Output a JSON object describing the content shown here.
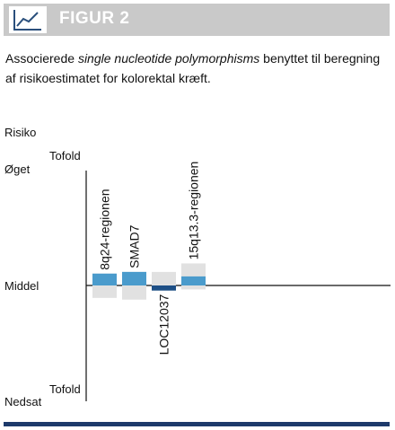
{
  "header": {
    "title": "FIGUR 2",
    "icon": "line-chart-icon"
  },
  "caption": {
    "part1": "Associerede ",
    "italic": "single nucleotide polymorphisms",
    "part2": " benyttet til beregning af risikoestimatet for kolorektal kræft."
  },
  "colors": {
    "header_bg": "#c9c9c9",
    "footer": "#1d3a6b",
    "estimate": "#4a9bcc",
    "negative": "#1d4f86",
    "range": "#e1e1e1"
  },
  "chart_data": {
    "type": "bar",
    "title": "",
    "ylabel": "Risiko",
    "ylim": [
      -2,
      2
    ],
    "y_ticks": [
      {
        "label": "Øget",
        "value": 2,
        "sublabel": "Tofold"
      },
      {
        "label": "Middel",
        "value": 0
      },
      {
        "label": "Nedsat",
        "value": -2,
        "sublabel": "Tofold"
      }
    ],
    "categories": [
      "8q24-regionen",
      "SMAD7",
      "LOC12037",
      "15q13.3-regionen"
    ],
    "series": [
      {
        "values": [
          0.21,
          0.24,
          -0.09,
          0.16
        ]
      }
    ],
    "ranges": [
      [
        -0.22,
        0.21
      ],
      [
        -0.25,
        0.24
      ],
      [
        -0.09,
        0.24
      ],
      [
        -0.07,
        0.39
      ]
    ]
  }
}
